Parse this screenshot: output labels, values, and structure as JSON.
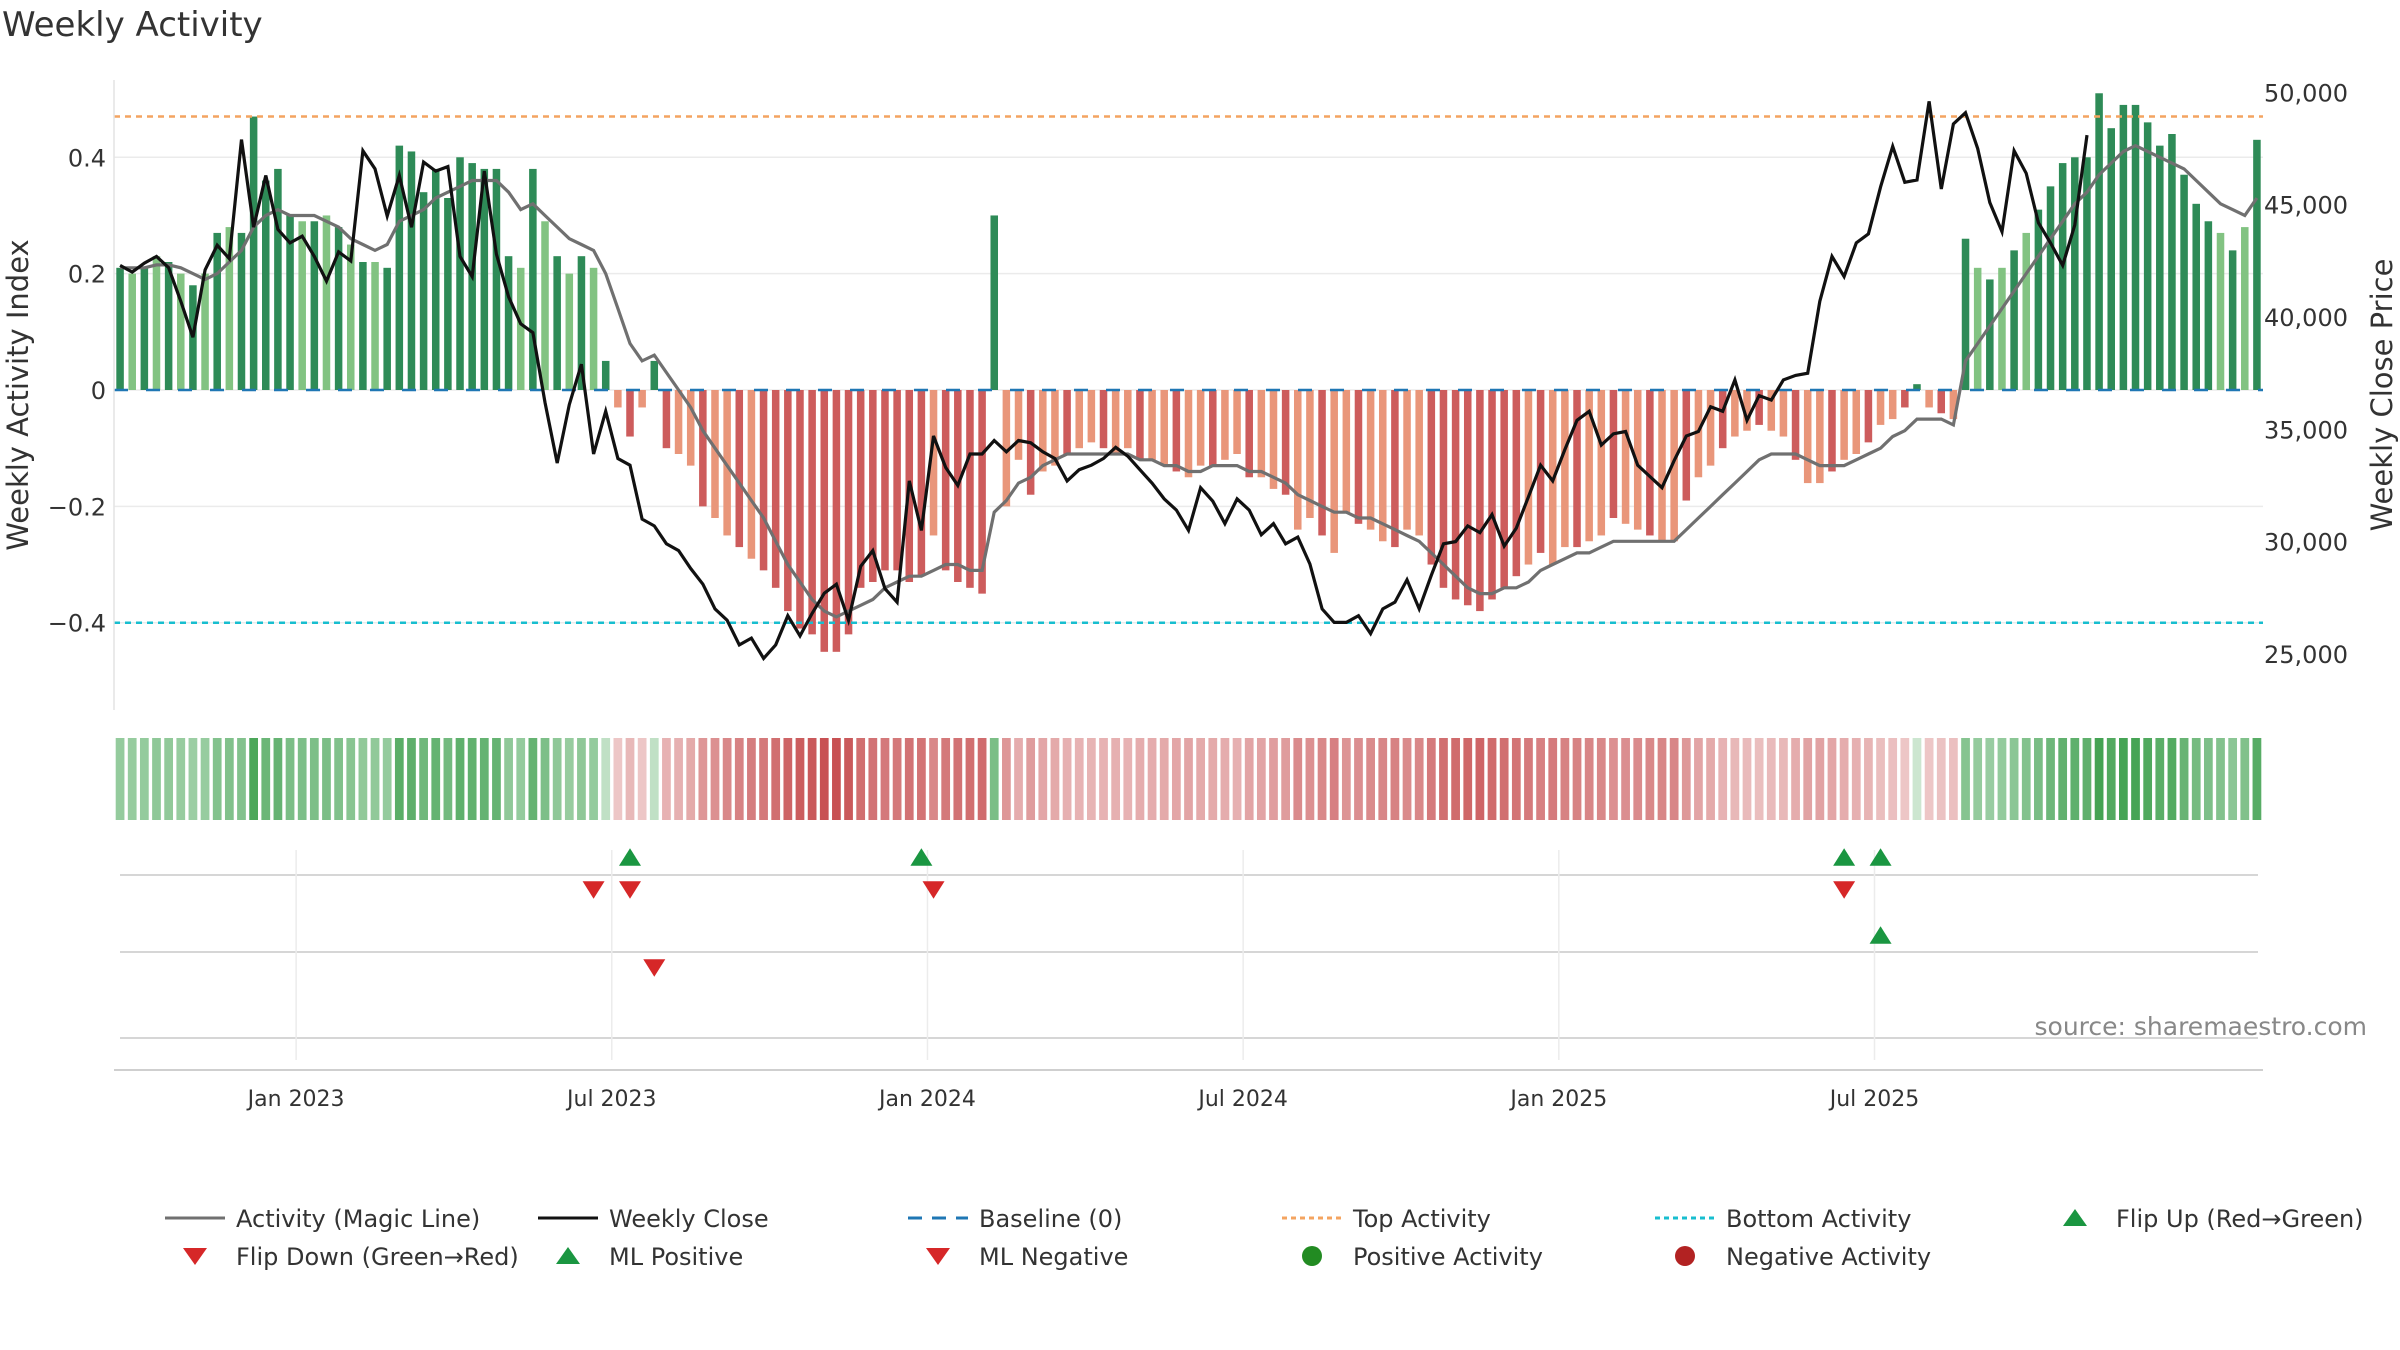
{
  "chart_data": {
    "type": "bar",
    "title": "Weekly Activity",
    "ylabel": "Weekly Activity Index",
    "y2label": "Weekly Close Price",
    "source": "source: sharemaestro.com",
    "ylim": [
      -0.55,
      0.55
    ],
    "y2lim": [
      22500,
      51000
    ],
    "yticks": [
      {
        "v": 0.4,
        "label": "0.4"
      },
      {
        "v": 0.2,
        "label": "0.2"
      },
      {
        "v": 0,
        "label": "0"
      },
      {
        "v": -0.2,
        "label": "−0.2"
      },
      {
        "v": -0.4,
        "label": "−0.4"
      }
    ],
    "y2ticks": [
      {
        "v": 50000,
        "label": "50,000"
      },
      {
        "v": 45000,
        "label": "45,000"
      },
      {
        "v": 40000,
        "label": "40,000"
      },
      {
        "v": 35000,
        "label": "35,000"
      },
      {
        "v": 30000,
        "label": "30,000"
      },
      {
        "v": 25000,
        "label": "25,000"
      }
    ],
    "xticks": [
      {
        "week": 15,
        "label": "Jan 2023"
      },
      {
        "week": 41,
        "label": "Jul 2023"
      },
      {
        "week": 67,
        "label": "Jan 2024"
      },
      {
        "week": 93,
        "label": "Jul 2024"
      },
      {
        "week": 119,
        "label": "Jan 2025"
      },
      {
        "week": 145,
        "label": "Jul 2025"
      }
    ],
    "top_activity": 0.47,
    "bottom_activity": -0.4,
    "activity": [
      0.21,
      0.2,
      0.21,
      0.23,
      0.22,
      0.2,
      0.18,
      0.2,
      0.27,
      0.28,
      0.27,
      0.47,
      0.36,
      0.38,
      0.3,
      0.29,
      0.29,
      0.3,
      0.28,
      0.25,
      0.22,
      0.22,
      0.21,
      0.42,
      0.41,
      0.34,
      0.38,
      0.33,
      0.4,
      0.39,
      0.38,
      0.38,
      0.23,
      0.21,
      0.38,
      0.29,
      0.23,
      0.2,
      0.23,
      0.21,
      0.05,
      -0.03,
      -0.08,
      -0.03,
      0.05,
      -0.1,
      -0.11,
      -0.13,
      -0.2,
      -0.22,
      -0.25,
      -0.27,
      -0.29,
      -0.31,
      -0.34,
      -0.38,
      -0.41,
      -0.42,
      -0.45,
      -0.45,
      -0.42,
      -0.34,
      -0.33,
      -0.31,
      -0.31,
      -0.33,
      -0.32,
      -0.25,
      -0.31,
      -0.33,
      -0.34,
      -0.35,
      0.3,
      -0.2,
      -0.12,
      -0.18,
      -0.14,
      -0.13,
      -0.11,
      -0.1,
      -0.09,
      -0.1,
      -0.11,
      -0.1,
      -0.12,
      -0.12,
      -0.13,
      -0.14,
      -0.15,
      -0.13,
      -0.13,
      -0.12,
      -0.11,
      -0.15,
      -0.15,
      -0.17,
      -0.18,
      -0.24,
      -0.22,
      -0.25,
      -0.28,
      -0.21,
      -0.23,
      -0.24,
      -0.26,
      -0.27,
      -0.24,
      -0.25,
      -0.3,
      -0.34,
      -0.36,
      -0.37,
      -0.38,
      -0.36,
      -0.34,
      -0.32,
      -0.3,
      -0.28,
      -0.3,
      -0.27,
      -0.27,
      -0.26,
      -0.25,
      -0.22,
      -0.23,
      -0.24,
      -0.25,
      -0.26,
      -0.26,
      -0.19,
      -0.15,
      -0.13,
      -0.1,
      -0.08,
      -0.07,
      -0.06,
      -0.07,
      -0.08,
      -0.12,
      -0.16,
      -0.16,
      -0.14,
      -0.12,
      -0.11,
      -0.09,
      -0.06,
      -0.05,
      -0.03,
      0.01,
      -0.03,
      -0.04,
      -0.05,
      0.26,
      0.21,
      0.19,
      0.21,
      0.24,
      0.27,
      0.31,
      0.35,
      0.39,
      0.4,
      0.4,
      0.51,
      0.45,
      0.49,
      0.49,
      0.46,
      0.42,
      0.44,
      0.37,
      0.32,
      0.29,
      0.27,
      0.24,
      0.28,
      0.43
    ],
    "magic_line": [
      0.21,
      0.21,
      0.21,
      0.215,
      0.215,
      0.21,
      0.2,
      0.19,
      0.2,
      0.22,
      0.24,
      0.28,
      0.3,
      0.31,
      0.3,
      0.3,
      0.3,
      0.29,
      0.28,
      0.26,
      0.25,
      0.24,
      0.25,
      0.29,
      0.3,
      0.31,
      0.33,
      0.34,
      0.35,
      0.36,
      0.36,
      0.36,
      0.34,
      0.31,
      0.32,
      0.3,
      0.28,
      0.26,
      0.25,
      0.24,
      0.2,
      0.14,
      0.08,
      0.05,
      0.06,
      0.03,
      0.0,
      -0.03,
      -0.07,
      -0.1,
      -0.13,
      -0.16,
      -0.19,
      -0.22,
      -0.26,
      -0.3,
      -0.33,
      -0.36,
      -0.38,
      -0.39,
      -0.38,
      -0.37,
      -0.36,
      -0.34,
      -0.33,
      -0.32,
      -0.32,
      -0.31,
      -0.3,
      -0.3,
      -0.31,
      -0.31,
      -0.21,
      -0.19,
      -0.16,
      -0.15,
      -0.13,
      -0.12,
      -0.11,
      -0.11,
      -0.11,
      -0.11,
      -0.11,
      -0.11,
      -0.12,
      -0.12,
      -0.13,
      -0.13,
      -0.14,
      -0.14,
      -0.13,
      -0.13,
      -0.13,
      -0.14,
      -0.14,
      -0.15,
      -0.16,
      -0.18,
      -0.19,
      -0.2,
      -0.21,
      -0.21,
      -0.22,
      -0.22,
      -0.23,
      -0.24,
      -0.25,
      -0.26,
      -0.28,
      -0.3,
      -0.32,
      -0.34,
      -0.35,
      -0.35,
      -0.34,
      -0.34,
      -0.33,
      -0.31,
      -0.3,
      -0.29,
      -0.28,
      -0.28,
      -0.27,
      -0.26,
      -0.26,
      -0.26,
      -0.26,
      -0.26,
      -0.26,
      -0.24,
      -0.22,
      -0.2,
      -0.18,
      -0.16,
      -0.14,
      -0.12,
      -0.11,
      -0.11,
      -0.11,
      -0.12,
      -0.13,
      -0.13,
      -0.13,
      -0.12,
      -0.11,
      -0.1,
      -0.08,
      -0.07,
      -0.05,
      -0.05,
      -0.05,
      -0.06,
      0.05,
      0.08,
      0.11,
      0.14,
      0.17,
      0.2,
      0.23,
      0.26,
      0.29,
      0.32,
      0.34,
      0.37,
      0.39,
      0.41,
      0.42,
      0.41,
      0.4,
      0.39,
      0.38,
      0.36,
      0.34,
      0.32,
      0.31,
      0.3,
      0.33
    ],
    "weekly_close": [
      42300,
      42000,
      42400,
      42700,
      42200,
      40700,
      39100,
      42100,
      43200,
      42600,
      47900,
      44000,
      46300,
      43900,
      43300,
      43600,
      42700,
      41600,
      42900,
      42500,
      47400,
      46600,
      44500,
      46300,
      44000,
      46900,
      46500,
      46700,
      42700,
      41800,
      46500,
      42800,
      40900,
      39700,
      39300,
      36200,
      33500,
      36100,
      37900,
      33900,
      35800,
      33700,
      33400,
      31000,
      30700,
      29900,
      29600,
      28800,
      28100,
      27000,
      26500,
      25400,
      25700,
      24800,
      25400,
      26700,
      25800,
      26800,
      27700,
      28100,
      26500,
      28900,
      29600,
      27900,
      27300,
      32700,
      30500,
      34700,
      33300,
      32500,
      33900,
      33900,
      34500,
      34000,
      34500,
      34400,
      34000,
      33700,
      32700,
      33200,
      33400,
      33700,
      34200,
      33800,
      33200,
      32600,
      31900,
      31400,
      30500,
      32400,
      31800,
      30800,
      31900,
      31400,
      30300,
      30800,
      29900,
      30200,
      29000,
      27000,
      26400,
      26400,
      26700,
      25900,
      27000,
      27300,
      28300,
      27000,
      28500,
      29900,
      30000,
      30700,
      30400,
      31200,
      29800,
      30600,
      32000,
      33400,
      32700,
      34100,
      35400,
      35800,
      34300,
      34800,
      34900,
      33400,
      32900,
      32400,
      33600,
      34700,
      34900,
      36000,
      35800,
      37200,
      35400,
      36500,
      36300,
      37200,
      37400,
      37500,
      40700,
      42700,
      41800,
      43300,
      43700,
      45800,
      47600,
      46000,
      46100,
      49600,
      45700,
      48600,
      49100,
      47500,
      45100,
      43800,
      47400,
      46400,
      44200,
      43300,
      42300,
      44100,
      48100
    ],
    "flip_up": [
      42,
      66,
      142,
      145
    ],
    "flip_down": [
      39,
      42,
      67,
      142
    ],
    "ml_positive": [
      145
    ],
    "ml_negative": [
      44
    ],
    "legend": [
      "Activity (Magic Line)",
      "Weekly Close",
      "Baseline (0)",
      "Top Activity",
      "Bottom Activity",
      "Flip Up (Red→Green)",
      "Flip Down (Green→Red)",
      "ML Positive",
      "ML Negative",
      "Positive Activity",
      "Negative Activity"
    ],
    "colors": {
      "green_dark": "#2e8b57",
      "green_light": "#82c382",
      "red_dark": "#cd5c5c",
      "red_light": "#e9967a",
      "magic": "#707070",
      "close": "#111111",
      "baseline": "#1f77b4",
      "top": "#f4a460",
      "bottom": "#17becf",
      "flip_up": "#1a9641",
      "flip_down": "#d62728",
      "pos_dot": "#228b22",
      "neg_dot": "#b22222"
    }
  }
}
